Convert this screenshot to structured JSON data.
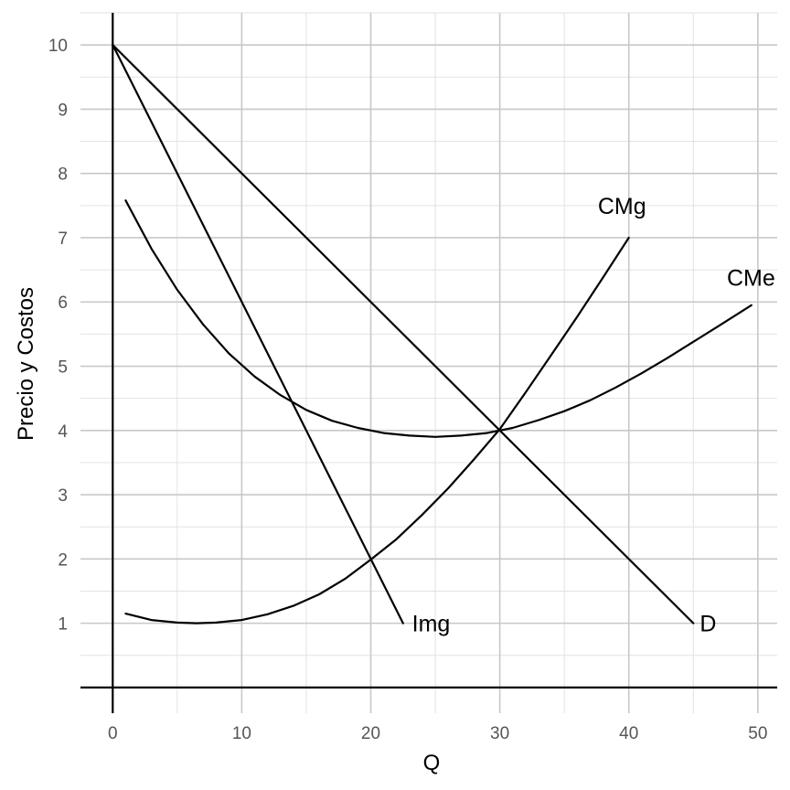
{
  "chart_data": {
    "type": "line",
    "xlabel": "Q",
    "ylabel": "Precio y Costos",
    "xlim": [
      -2.5,
      51.5
    ],
    "ylim": [
      -0.4,
      10.5
    ],
    "x_ticks": [
      0,
      10,
      20,
      30,
      40,
      50
    ],
    "y_ticks": [
      1,
      2,
      3,
      4,
      5,
      6,
      7,
      8,
      9,
      10
    ],
    "grid": true,
    "series": [
      {
        "name": "D",
        "x": [
          0,
          45
        ],
        "y": [
          10,
          1
        ]
      },
      {
        "name": "Img",
        "x": [
          0,
          22.5
        ],
        "y": [
          10,
          1
        ]
      },
      {
        "name": "CMg",
        "x": [
          1,
          3,
          5,
          6.5,
          8,
          10,
          12,
          14,
          16,
          18,
          20,
          22,
          24,
          26,
          28,
          30,
          32,
          34,
          36,
          38,
          40
        ],
        "y": [
          1.15,
          1.05,
          1.01,
          1.0,
          1.01,
          1.05,
          1.14,
          1.27,
          1.45,
          1.69,
          1.99,
          2.31,
          2.69,
          3.1,
          3.55,
          4.02,
          4.59,
          5.18,
          5.77,
          6.38,
          7.0
        ]
      },
      {
        "name": "CMe",
        "x": [
          1,
          3,
          5,
          7,
          9,
          11,
          13,
          15,
          17,
          19,
          21,
          23,
          25,
          27,
          29,
          31,
          33,
          35,
          37,
          39,
          41,
          43,
          45,
          47,
          49.5
        ],
        "y": [
          7.58,
          6.83,
          6.19,
          5.65,
          5.2,
          4.84,
          4.55,
          4.32,
          4.15,
          4.04,
          3.96,
          3.92,
          3.9,
          3.92,
          3.96,
          4.04,
          4.16,
          4.3,
          4.47,
          4.67,
          4.89,
          5.13,
          5.38,
          5.63,
          5.95
        ]
      }
    ],
    "curve_labels": [
      {
        "text": "D",
        "x": 45.5,
        "y": 1.0
      },
      {
        "text": "Img",
        "x": 23.2,
        "y": 1.0
      },
      {
        "text": "CMg",
        "x": 37.6,
        "y": 7.5
      },
      {
        "text": "CMe",
        "x": 47.6,
        "y": 6.38
      }
    ]
  }
}
